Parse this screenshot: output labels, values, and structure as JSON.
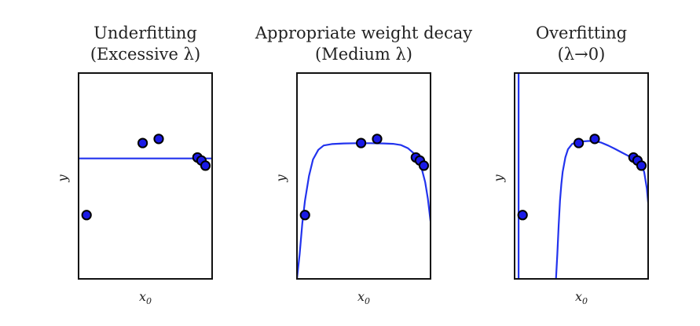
{
  "chart_data": [
    {
      "type": "line",
      "title": [
        "Underfitting",
        "(Excessive λ)"
      ],
      "xlabel": "x",
      "xlabel_sub": "0",
      "ylabel": "y",
      "xlim": [
        0,
        1
      ],
      "ylim": [
        0,
        1
      ],
      "points": [
        {
          "x": 0.06,
          "y": 0.31
        },
        {
          "x": 0.48,
          "y": 0.66
        },
        {
          "x": 0.6,
          "y": 0.68
        },
        {
          "x": 0.89,
          "y": 0.59
        },
        {
          "x": 0.92,
          "y": 0.575
        },
        {
          "x": 0.95,
          "y": 0.55
        }
      ],
      "curve": {
        "x": [
          0,
          1
        ],
        "y": [
          0.585,
          0.585
        ]
      },
      "series_color": "#2233ee"
    },
    {
      "type": "line",
      "title": [
        "Appropriate weight decay",
        "(Medium λ)"
      ],
      "xlabel": "x",
      "xlabel_sub": "0",
      "ylabel": "y",
      "xlim": [
        0,
        1
      ],
      "ylim": [
        0,
        1
      ],
      "points": [
        {
          "x": 0.06,
          "y": 0.31
        },
        {
          "x": 0.48,
          "y": 0.66
        },
        {
          "x": 0.6,
          "y": 0.68
        },
        {
          "x": 0.89,
          "y": 0.59
        },
        {
          "x": 0.92,
          "y": 0.575
        },
        {
          "x": 0.95,
          "y": 0.55
        }
      ],
      "curve": {
        "x": [
          0.0,
          0.02,
          0.04,
          0.06,
          0.09,
          0.12,
          0.16,
          0.2,
          0.26,
          0.35,
          0.45,
          0.55,
          0.65,
          0.72,
          0.78,
          0.83,
          0.87,
          0.9,
          0.93,
          0.96,
          0.98,
          1.0
        ],
        "y": [
          0.0,
          0.12,
          0.27,
          0.38,
          0.5,
          0.58,
          0.627,
          0.648,
          0.655,
          0.658,
          0.659,
          0.659,
          0.658,
          0.656,
          0.65,
          0.635,
          0.613,
          0.585,
          0.545,
          0.47,
          0.39,
          0.28
        ]
      },
      "series_color": "#2233ee"
    },
    {
      "type": "line",
      "title": [
        "Overfitting",
        "(λ→0)"
      ],
      "xlabel": "x",
      "xlabel_sub": "0",
      "ylabel": "y",
      "xlim": [
        0,
        1
      ],
      "ylim": [
        0,
        1
      ],
      "points": [
        {
          "x": 0.06,
          "y": 0.31
        },
        {
          "x": 0.48,
          "y": 0.66
        },
        {
          "x": 0.6,
          "y": 0.68
        },
        {
          "x": 0.89,
          "y": 0.59
        },
        {
          "x": 0.92,
          "y": 0.575
        },
        {
          "x": 0.95,
          "y": 0.55
        }
      ],
      "vertical_line_x": 0.03,
      "curve": {
        "x": [
          0.31,
          0.32,
          0.33,
          0.34,
          0.35,
          0.36,
          0.38,
          0.4,
          0.43,
          0.46,
          0.5,
          0.55,
          0.6,
          0.65,
          0.7,
          0.75,
          0.8,
          0.85,
          0.89,
          0.92,
          0.95,
          0.97,
          0.99,
          1.0
        ],
        "y": [
          0.0,
          0.12,
          0.26,
          0.38,
          0.46,
          0.52,
          0.59,
          0.63,
          0.655,
          0.664,
          0.667,
          0.67,
          0.67,
          0.662,
          0.648,
          0.632,
          0.615,
          0.598,
          0.583,
          0.57,
          0.55,
          0.52,
          0.44,
          0.37
        ]
      },
      "series_color": "#2233ee"
    }
  ]
}
